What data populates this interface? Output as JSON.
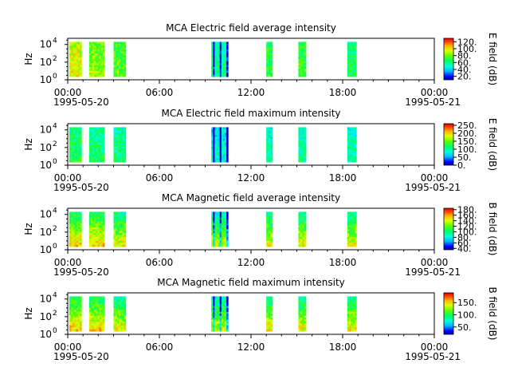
{
  "chart_data": [
    {
      "type": "heatmap",
      "title": "MCA  Electric field average intensity",
      "ylabel": "Hz",
      "colorbar_label": "E field (dB)",
      "colorbar_ticks": [
        "20.",
        "40.",
        "60.",
        "80.",
        "100.",
        "120."
      ],
      "colorbar_range": [
        10,
        130
      ],
      "yticks": [
        "10",
        "10",
        "10"
      ],
      "yticks_exp": [
        "0",
        "2",
        "4"
      ],
      "xticks": [
        "00:00",
        "06:00",
        "12:00",
        "18:00",
        "00:00"
      ],
      "date_labels": [
        "1995-05-20",
        "1995-05-21"
      ],
      "x_range": [
        0,
        24
      ],
      "y_range_log": [
        0,
        4.7
      ],
      "data_gaps": "data present only in blocks",
      "blocks": [
        [
          0.1,
          0.9,
          0.7
        ],
        [
          1.4,
          2.4,
          0.6
        ],
        [
          3.0,
          3.8,
          0.55
        ],
        [
          9.4,
          10.5,
          0.4
        ],
        [
          13.0,
          13.4,
          0.5
        ],
        [
          15.1,
          15.6,
          0.5
        ],
        [
          18.3,
          18.9,
          0.45
        ]
      ]
    },
    {
      "type": "heatmap",
      "title": "MCA  Electric field maximum intensity",
      "ylabel": "Hz",
      "colorbar_label": "E field (dB)",
      "colorbar_ticks": [
        "0.",
        "50.",
        "100.",
        "150.",
        "200.",
        "250."
      ],
      "colorbar_range": [
        0,
        260
      ],
      "yticks": [
        "10",
        "10",
        "10"
      ],
      "yticks_exp": [
        "0",
        "2",
        "4"
      ],
      "xticks": [
        "00:00",
        "06:00",
        "12:00",
        "18:00",
        "00:00"
      ],
      "date_labels": [
        "1995-05-20",
        "1995-05-21"
      ],
      "x_range": [
        0,
        24
      ],
      "y_range_log": [
        0,
        4.7
      ],
      "blocks": [
        [
          0.1,
          0.9,
          0.45
        ],
        [
          1.4,
          2.4,
          0.42
        ],
        [
          3.0,
          3.8,
          0.4
        ],
        [
          9.4,
          10.5,
          0.3
        ],
        [
          13.0,
          13.4,
          0.35
        ],
        [
          15.1,
          15.6,
          0.38
        ],
        [
          18.3,
          18.9,
          0.36
        ]
      ]
    },
    {
      "type": "heatmap",
      "title": "MCA  Magnetic field average intensity",
      "ylabel": "Hz",
      "colorbar_label": "B field (dB)",
      "colorbar_ticks": [
        "40.",
        "60.",
        "80.",
        "100.",
        "120.",
        "140.",
        "160.",
        "180."
      ],
      "colorbar_range": [
        35,
        185
      ],
      "yticks": [
        "10",
        "10",
        "10"
      ],
      "yticks_exp": [
        "0",
        "2",
        "4"
      ],
      "xticks": [
        "00:00",
        "06:00",
        "12:00",
        "18:00",
        "00:00"
      ],
      "date_labels": [
        "1995-05-20",
        "1995-05-21"
      ],
      "x_range": [
        0,
        24
      ],
      "y_range_log": [
        0,
        4.7
      ],
      "blocks": [
        [
          0.1,
          0.9,
          0.55
        ],
        [
          1.4,
          2.4,
          0.55
        ],
        [
          3.0,
          3.8,
          0.5
        ],
        [
          9.4,
          10.5,
          0.45
        ],
        [
          13.0,
          13.4,
          0.5
        ],
        [
          15.1,
          15.6,
          0.5
        ],
        [
          18.3,
          18.9,
          0.5
        ]
      ]
    },
    {
      "type": "heatmap",
      "title": "MCA  Magnetic field maximum intensity",
      "ylabel": "Hz",
      "colorbar_label": "B field (dB)",
      "colorbar_ticks": [
        "50.",
        "100.",
        "150."
      ],
      "colorbar_range": [
        20,
        190
      ],
      "yticks": [
        "10",
        "10",
        "10"
      ],
      "yticks_exp": [
        "0",
        "2",
        "4"
      ],
      "xticks": [
        "00:00",
        "06:00",
        "12:00",
        "18:00",
        "00:00"
      ],
      "date_labels": [
        "1995-05-20",
        "1995-05-21"
      ],
      "x_range": [
        0,
        24
      ],
      "y_range_log": [
        0,
        4.7
      ],
      "blocks": [
        [
          0.1,
          0.9,
          0.55
        ],
        [
          1.4,
          2.4,
          0.55
        ],
        [
          3.0,
          3.8,
          0.5
        ],
        [
          9.4,
          10.5,
          0.45
        ],
        [
          13.0,
          13.4,
          0.5
        ],
        [
          15.1,
          15.6,
          0.5
        ],
        [
          18.3,
          18.9,
          0.5
        ]
      ]
    }
  ]
}
